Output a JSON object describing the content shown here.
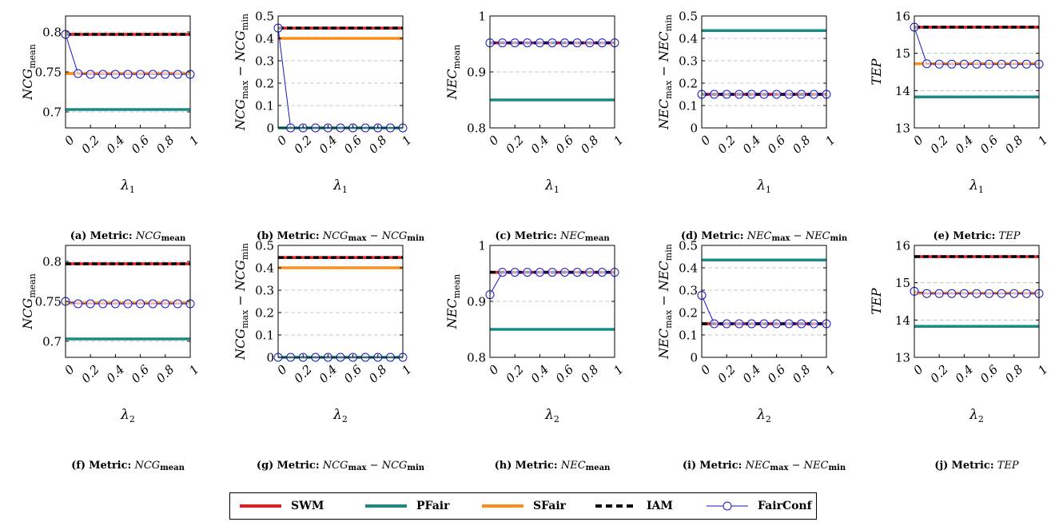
{
  "series_styles": [
    {
      "name": "SWM",
      "color": "#e8191f",
      "dash": "none",
      "marker": false
    },
    {
      "name": "PFair",
      "color": "#1b8a84",
      "dash": "none",
      "marker": false
    },
    {
      "name": "SFair",
      "color": "#ff8c1a",
      "dash": "none",
      "marker": false
    },
    {
      "name": "IAM",
      "color": "#000000",
      "dash": "dashed",
      "marker": false
    },
    {
      "name": "FairConf",
      "color": "#1414c8",
      "dash": "none",
      "marker": "circle"
    }
  ],
  "legend": {
    "items": [
      {
        "label": "SWM",
        "color": "#e8191f",
        "style": "solid"
      },
      {
        "label": "PFair",
        "color": "#1b8a84",
        "style": "solid"
      },
      {
        "label": "SFair",
        "color": "#ff8c1a",
        "style": "solid"
      },
      {
        "label": "IAM",
        "color": "#000000",
        "style": "dashed"
      },
      {
        "label": "FairConf",
        "color": "#1414c8",
        "style": "marker"
      }
    ]
  },
  "chart_data": [
    {
      "id": "a",
      "type": "line",
      "caption_tag": "(a)",
      "caption_prefix": "Metric:",
      "caption_name": "NCG",
      "caption_sub": "mean",
      "caption_name2": "",
      "caption_sub2": "",
      "ylabel": {
        "t1": "NCG",
        "s1": "mean",
        "t2": "",
        "s2": ""
      },
      "xlabel": "λ",
      "xlabel_sub": "1",
      "x": [
        0,
        0.1,
        0.2,
        0.3,
        0.4,
        0.5,
        0.6,
        0.7,
        0.8,
        0.9,
        1.0
      ],
      "xticks": [
        "0",
        "0.2",
        "0.4",
        "0.6",
        "0.8",
        "1"
      ],
      "ylim": [
        0.68,
        0.82
      ],
      "yticks": [
        0.7,
        0.75,
        0.8
      ],
      "yticklabels": [
        "0.7",
        "0.75",
        "0.8"
      ],
      "baselines": {
        "SWM": 0.797,
        "PFair": 0.703,
        "SFair": 0.748,
        "IAM": 0.797
      },
      "FairConf": [
        0.797,
        0.748,
        0.747,
        0.747,
        0.747,
        0.747,
        0.747,
        0.747,
        0.747,
        0.747,
        0.747
      ]
    },
    {
      "id": "b",
      "type": "line",
      "caption_tag": "(b)",
      "caption_prefix": "Metric:",
      "caption_name": "NCG",
      "caption_sub": "max",
      "caption_name2": "NCG",
      "caption_sub2": "min",
      "ylabel": {
        "t1": "NCG",
        "s1": "max",
        "t2": "NCG",
        "s2": "min"
      },
      "xlabel": "λ",
      "xlabel_sub": "1",
      "x": [
        0,
        0.1,
        0.2,
        0.3,
        0.4,
        0.5,
        0.6,
        0.7,
        0.8,
        0.9,
        1.0
      ],
      "xticks": [
        "0",
        "0.2",
        "0.4",
        "0.6",
        "0.8",
        "1"
      ],
      "ylim": [
        0,
        0.5
      ],
      "yticks": [
        0,
        0.1,
        0.2,
        0.3,
        0.4,
        0.5
      ],
      "yticklabels": [
        "0",
        "0.1",
        "0.2",
        "0.3",
        "0.4",
        "0.5"
      ],
      "baselines": {
        "SWM": 0.446,
        "PFair": 0.0,
        "SFair": 0.4,
        "IAM": 0.446
      },
      "FairConf": [
        0.446,
        0,
        0,
        0,
        0,
        0,
        0,
        0,
        0,
        0,
        0
      ]
    },
    {
      "id": "c",
      "type": "line",
      "caption_tag": "(c)",
      "caption_prefix": "Metric:",
      "caption_name": "NEC",
      "caption_sub": "mean",
      "caption_name2": "",
      "caption_sub2": "",
      "ylabel": {
        "t1": "NEC",
        "s1": "mean",
        "t2": "",
        "s2": ""
      },
      "xlabel": "λ",
      "xlabel_sub": "1",
      "x": [
        0,
        0.1,
        0.2,
        0.3,
        0.4,
        0.5,
        0.6,
        0.7,
        0.8,
        0.9,
        1.0
      ],
      "xticks": [
        "0",
        "0.2",
        "0.4",
        "0.6",
        "0.8",
        "1"
      ],
      "ylim": [
        0.8,
        1.0
      ],
      "yticks": [
        0.8,
        0.9,
        1.0
      ],
      "yticklabels": [
        "0.8",
        "0.9",
        "1"
      ],
      "baselines": {
        "SWM": 0.952,
        "PFair": 0.85,
        "SFair": 0.952,
        "IAM": 0.952
      },
      "FairConf": [
        0.952,
        0.952,
        0.952,
        0.952,
        0.952,
        0.952,
        0.952,
        0.952,
        0.952,
        0.952,
        0.952
      ]
    },
    {
      "id": "d",
      "type": "line",
      "caption_tag": "(d)",
      "caption_prefix": "Metric:",
      "caption_name": "NEC",
      "caption_sub": "max",
      "caption_name2": "NEC",
      "caption_sub2": "min",
      "ylabel": {
        "t1": "NEC",
        "s1": "max",
        "t2": "NEC",
        "s2": "min"
      },
      "xlabel": "λ",
      "xlabel_sub": "1",
      "x": [
        0,
        0.1,
        0.2,
        0.3,
        0.4,
        0.5,
        0.6,
        0.7,
        0.8,
        0.9,
        1.0
      ],
      "xticks": [
        "0",
        "0.2",
        "0.4",
        "0.6",
        "0.8",
        "1"
      ],
      "ylim": [
        0,
        0.5
      ],
      "yticks": [
        0,
        0.1,
        0.2,
        0.3,
        0.4,
        0.5
      ],
      "yticklabels": [
        "0",
        "0.1",
        "0.2",
        "0.3",
        "0.4",
        "0.5"
      ],
      "baselines": {
        "SWM": 0.15,
        "PFair": 0.435,
        "SFair": 0.15,
        "IAM": 0.15
      },
      "FairConf": [
        0.15,
        0.15,
        0.15,
        0.15,
        0.15,
        0.15,
        0.15,
        0.15,
        0.15,
        0.15,
        0.15
      ]
    },
    {
      "id": "e",
      "type": "line",
      "caption_tag": "(e)",
      "caption_prefix": "Metric:",
      "caption_name": "TEP",
      "caption_sub": "",
      "caption_name2": "",
      "caption_sub2": "",
      "ylabel": {
        "t1": "TEP",
        "s1": "",
        "t2": "",
        "s2": ""
      },
      "xlabel": "λ",
      "xlabel_sub": "1",
      "x": [
        0,
        0.1,
        0.2,
        0.3,
        0.4,
        0.5,
        0.6,
        0.7,
        0.8,
        0.9,
        1.0
      ],
      "xticks": [
        "0",
        "0.2",
        "0.4",
        "0.6",
        "0.8",
        "1"
      ],
      "ylim": [
        13,
        16
      ],
      "yticks": [
        13,
        14,
        15,
        16
      ],
      "yticklabels": [
        "13",
        "14",
        "15",
        "16"
      ],
      "baselines": {
        "SWM": 15.7,
        "PFair": 13.83,
        "SFair": 14.72,
        "IAM": 15.7
      },
      "FairConf": [
        15.7,
        14.72,
        14.71,
        14.71,
        14.71,
        14.71,
        14.71,
        14.71,
        14.71,
        14.71,
        14.71
      ]
    },
    {
      "id": "f",
      "type": "line",
      "caption_tag": "(f)",
      "caption_prefix": "Metric:",
      "caption_name": "NCG",
      "caption_sub": "mean",
      "caption_name2": "",
      "caption_sub2": "",
      "ylabel": {
        "t1": "NCG",
        "s1": "mean",
        "t2": "",
        "s2": ""
      },
      "xlabel": "λ",
      "xlabel_sub": "2",
      "x": [
        0,
        0.1,
        0.2,
        0.3,
        0.4,
        0.5,
        0.6,
        0.7,
        0.8,
        0.9,
        1.0
      ],
      "xticks": [
        "0",
        "0.2",
        "0.4",
        "0.6",
        "0.8",
        "1"
      ],
      "ylim": [
        0.68,
        0.82
      ],
      "yticks": [
        0.7,
        0.75,
        0.8
      ],
      "yticklabels": [
        "0.7",
        "0.75",
        "0.8"
      ],
      "baselines": {
        "SWM": 0.797,
        "PFair": 0.703,
        "SFair": 0.748,
        "IAM": 0.797
      },
      "FairConf": [
        0.75,
        0.747,
        0.747,
        0.747,
        0.747,
        0.747,
        0.747,
        0.747,
        0.747,
        0.747,
        0.747
      ]
    },
    {
      "id": "g",
      "type": "line",
      "caption_tag": "(g)",
      "caption_prefix": "Metric:",
      "caption_name": "NCG",
      "caption_sub": "max",
      "caption_name2": "NCG",
      "caption_sub2": "min",
      "ylabel": {
        "t1": "NCG",
        "s1": "max",
        "t2": "NCG",
        "s2": "min"
      },
      "xlabel": "λ",
      "xlabel_sub": "2",
      "x": [
        0,
        0.1,
        0.2,
        0.3,
        0.4,
        0.5,
        0.6,
        0.7,
        0.8,
        0.9,
        1.0
      ],
      "xticks": [
        "0",
        "0.2",
        "0.4",
        "0.6",
        "0.8",
        "1"
      ],
      "ylim": [
        0,
        0.5
      ],
      "yticks": [
        0,
        0.1,
        0.2,
        0.3,
        0.4,
        0.5
      ],
      "yticklabels": [
        "0",
        "0.1",
        "0.2",
        "0.3",
        "0.4",
        "0.5"
      ],
      "baselines": {
        "SWM": 0.446,
        "PFair": 0.0,
        "SFair": 0.4,
        "IAM": 0.446
      },
      "FairConf": [
        0,
        0,
        0,
        0,
        0,
        0,
        0,
        0,
        0,
        0,
        0
      ]
    },
    {
      "id": "h",
      "type": "line",
      "caption_tag": "(h)",
      "caption_prefix": "Metric:",
      "caption_name": "NEC",
      "caption_sub": "mean",
      "caption_name2": "",
      "caption_sub2": "",
      "ylabel": {
        "t1": "NEC",
        "s1": "mean",
        "t2": "",
        "s2": ""
      },
      "xlabel": "λ",
      "xlabel_sub": "2",
      "x": [
        0,
        0.1,
        0.2,
        0.3,
        0.4,
        0.5,
        0.6,
        0.7,
        0.8,
        0.9,
        1.0
      ],
      "xticks": [
        "0",
        "0.2",
        "0.4",
        "0.6",
        "0.8",
        "1"
      ],
      "ylim": [
        0.8,
        1.0
      ],
      "yticks": [
        0.8,
        0.9,
        1.0
      ],
      "yticklabels": [
        "0.8",
        "0.9",
        "1"
      ],
      "baselines": {
        "SWM": 0.952,
        "PFair": 0.85,
        "SFair": 0.952,
        "IAM": 0.952
      },
      "FairConf": [
        0.912,
        0.952,
        0.952,
        0.952,
        0.952,
        0.952,
        0.952,
        0.952,
        0.952,
        0.952,
        0.952
      ]
    },
    {
      "id": "i",
      "type": "line",
      "caption_tag": "(i)",
      "caption_prefix": "Metric:",
      "caption_name": "NEC",
      "caption_sub": "max",
      "caption_name2": "NEC",
      "caption_sub2": "min",
      "ylabel": {
        "t1": "NEC",
        "s1": "max",
        "t2": "NEC",
        "s2": "min"
      },
      "xlabel": "λ",
      "xlabel_sub": "2",
      "x": [
        0,
        0.1,
        0.2,
        0.3,
        0.4,
        0.5,
        0.6,
        0.7,
        0.8,
        0.9,
        1.0
      ],
      "xticks": [
        "0",
        "0.2",
        "0.4",
        "0.6",
        "0.8",
        "1"
      ],
      "ylim": [
        0,
        0.5
      ],
      "yticks": [
        0,
        0.1,
        0.2,
        0.3,
        0.4,
        0.5
      ],
      "yticklabels": [
        "0",
        "0.1",
        "0.2",
        "0.3",
        "0.4",
        "0.5"
      ],
      "baselines": {
        "SWM": 0.15,
        "PFair": 0.435,
        "SFair": 0.15,
        "IAM": 0.15
      },
      "FairConf": [
        0.277,
        0.15,
        0.15,
        0.15,
        0.15,
        0.15,
        0.15,
        0.15,
        0.15,
        0.15,
        0.15
      ]
    },
    {
      "id": "j",
      "type": "line",
      "caption_tag": "(j)",
      "caption_prefix": "Metric:",
      "caption_name": "TEP",
      "caption_sub": "",
      "caption_name2": "",
      "caption_sub2": "",
      "ylabel": {
        "t1": "TEP",
        "s1": "",
        "t2": "",
        "s2": ""
      },
      "xlabel": "λ",
      "xlabel_sub": "2",
      "x": [
        0,
        0.1,
        0.2,
        0.3,
        0.4,
        0.5,
        0.6,
        0.7,
        0.8,
        0.9,
        1.0
      ],
      "xticks": [
        "0",
        "0.2",
        "0.4",
        "0.6",
        "0.8",
        "1"
      ],
      "ylim": [
        13,
        16
      ],
      "yticks": [
        13,
        14,
        15,
        16
      ],
      "yticklabels": [
        "13",
        "14",
        "15",
        "16"
      ],
      "baselines": {
        "SWM": 15.7,
        "PFair": 13.83,
        "SFair": 14.72,
        "IAM": 15.7
      },
      "FairConf": [
        14.77,
        14.71,
        14.71,
        14.71,
        14.71,
        14.71,
        14.71,
        14.71,
        14.71,
        14.71,
        14.71
      ]
    }
  ]
}
